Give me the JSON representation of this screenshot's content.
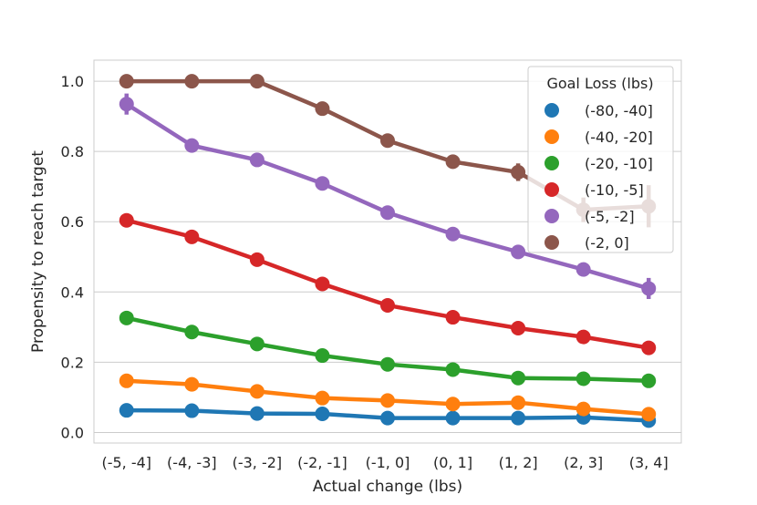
{
  "chart_data": {
    "type": "line",
    "title": "",
    "xlabel": "Actual change (lbs)",
    "ylabel": "Propensity to reach target",
    "categories": [
      "(-5, -4]",
      "(-4, -3]",
      "(-3, -2]",
      "(-2, -1]",
      "(-1, 0]",
      "(0, 1]",
      "(1, 2]",
      "(2, 3]",
      "(3, 4]"
    ],
    "ylim": [
      -0.03,
      1.06
    ],
    "yticks": [
      0.0,
      0.2,
      0.4,
      0.6,
      0.8,
      1.0
    ],
    "ytick_labels": [
      "0.0",
      "0.2",
      "0.4",
      "0.6",
      "0.8",
      "1.0"
    ],
    "grid": "horizontal",
    "legend": {
      "title": "Goal Loss (lbs)",
      "position": "top-right"
    },
    "series": [
      {
        "name": "(-80, -40]",
        "color": "#1f77b4",
        "values": [
          0.063,
          0.062,
          0.054,
          0.053,
          0.041,
          0.041,
          0.041,
          0.043,
          0.034
        ],
        "errors": [
          0.004,
          0.004,
          0.003,
          0.003,
          0.003,
          0.003,
          0.003,
          0.004,
          0.005
        ]
      },
      {
        "name": "(-40, -20]",
        "color": "#ff7f0e",
        "values": [
          0.147,
          0.137,
          0.117,
          0.098,
          0.091,
          0.081,
          0.085,
          0.067,
          0.052
        ],
        "errors": [
          0.005,
          0.005,
          0.004,
          0.004,
          0.004,
          0.004,
          0.005,
          0.006,
          0.007
        ]
      },
      {
        "name": "(-20, -10]",
        "color": "#2ca02c",
        "values": [
          0.326,
          0.286,
          0.252,
          0.219,
          0.194,
          0.179,
          0.155,
          0.153,
          0.147
        ],
        "errors": [
          0.006,
          0.006,
          0.005,
          0.005,
          0.005,
          0.005,
          0.006,
          0.007,
          0.009
        ]
      },
      {
        "name": "(-10, -5]",
        "color": "#d62728",
        "values": [
          0.604,
          0.557,
          0.492,
          0.423,
          0.362,
          0.328,
          0.297,
          0.272,
          0.241
        ],
        "errors": [
          0.012,
          0.009,
          0.008,
          0.008,
          0.008,
          0.008,
          0.009,
          0.012,
          0.018
        ]
      },
      {
        "name": "(-5, -2]",
        "color": "#9467bd",
        "values": [
          0.935,
          0.817,
          0.776,
          0.709,
          0.626,
          0.565,
          0.514,
          0.464,
          0.41
        ],
        "errors": [
          0.03,
          0.016,
          0.01,
          0.01,
          0.01,
          0.01,
          0.014,
          0.02,
          0.03
        ]
      },
      {
        "name": "(-2, 0]",
        "color": "#8c564b",
        "values": [
          1.0,
          1.0,
          1.0,
          0.922,
          0.831,
          0.771,
          0.741,
          0.634,
          0.644
        ],
        "errors": [
          0.0,
          0.0,
          0.0,
          0.01,
          0.01,
          0.015,
          0.025,
          0.035,
          0.06
        ]
      }
    ]
  }
}
